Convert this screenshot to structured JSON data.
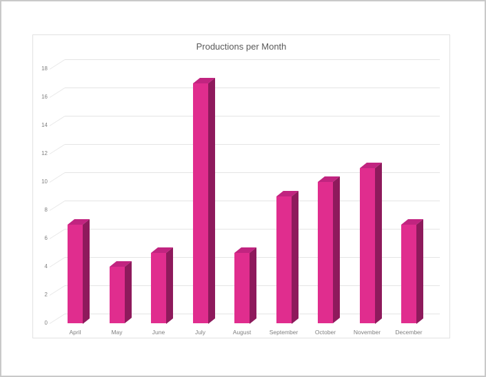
{
  "chart": {
    "colors": {
      "bar_front": "#e02d8e",
      "bar_top": "#c12480",
      "bar_side": "#8e1a5c",
      "gridline": "#e4e4e4",
      "grid_diagonal": "#e8e8e8",
      "axis_text": "#7f7f7f",
      "title_text": "#595959",
      "panel_border": "#e1e1e1",
      "frame_border": "#c9c9c9"
    }
  },
  "chart_data": {
    "type": "bar",
    "style": "3d",
    "title": "Productions per Month",
    "categories": [
      "April",
      "May",
      "June",
      "July",
      "August",
      "September",
      "October",
      "November",
      "December"
    ],
    "values": [
      7,
      4,
      5,
      17,
      5,
      9,
      10,
      11,
      7
    ],
    "xlabel": "",
    "ylabel": "",
    "ylim": [
      0,
      18
    ],
    "ytick_step": 2,
    "yticks": [
      0,
      2,
      4,
      6,
      8,
      10,
      12,
      14,
      16,
      18
    ],
    "grid": true,
    "legend": false
  }
}
